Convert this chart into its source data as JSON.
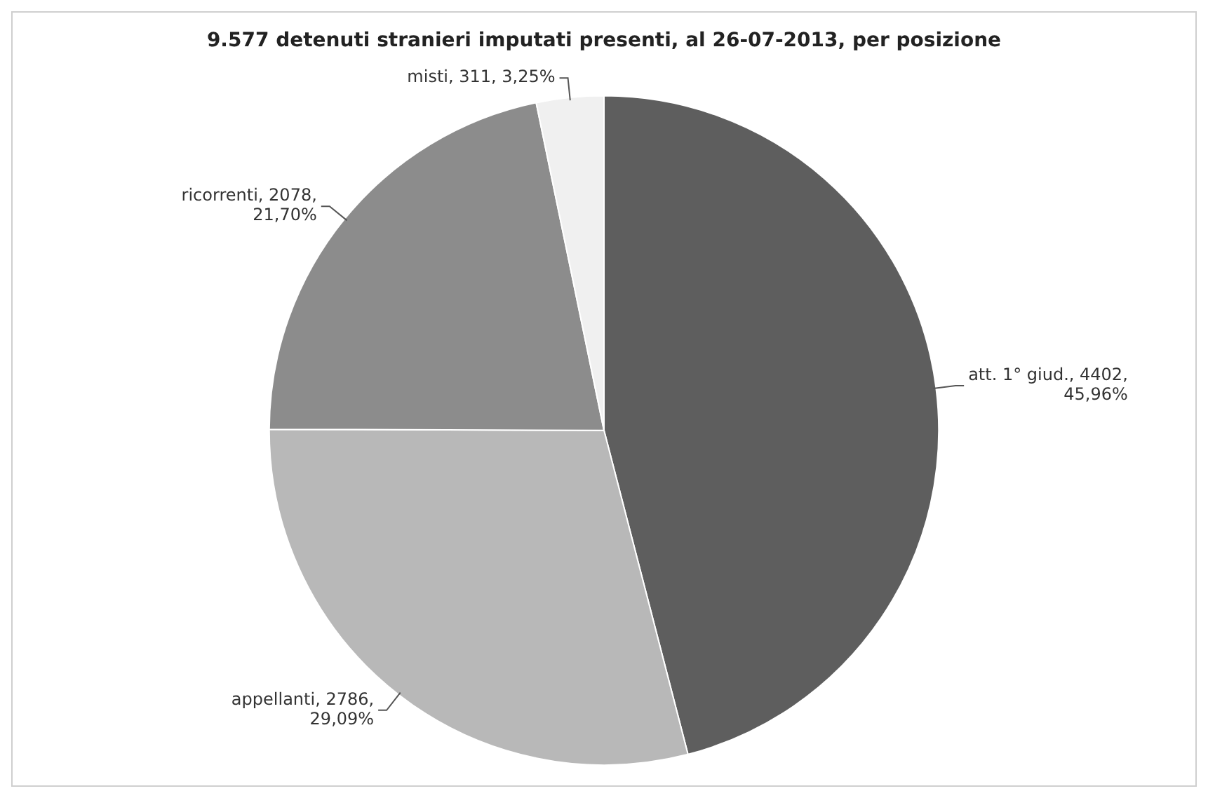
{
  "chart_data": {
    "type": "pie",
    "title": "9.577 detenuti stranieri imputati presenti, al 26-07-2013, per posizione",
    "categories": [
      "att. 1° giud.",
      "appellanti",
      "ricorrenti",
      "misti"
    ],
    "values": [
      4402,
      2786,
      2078,
      311
    ],
    "value_labels": [
      "4402, 45,96%",
      "2786, 29,09%",
      "2078, 21,70%",
      "311, 3,25%"
    ],
    "colors": [
      "#5e5e5e",
      "#b8b8b8",
      "#8c8c8c",
      "#f0f0f0"
    ],
    "legend": false
  }
}
